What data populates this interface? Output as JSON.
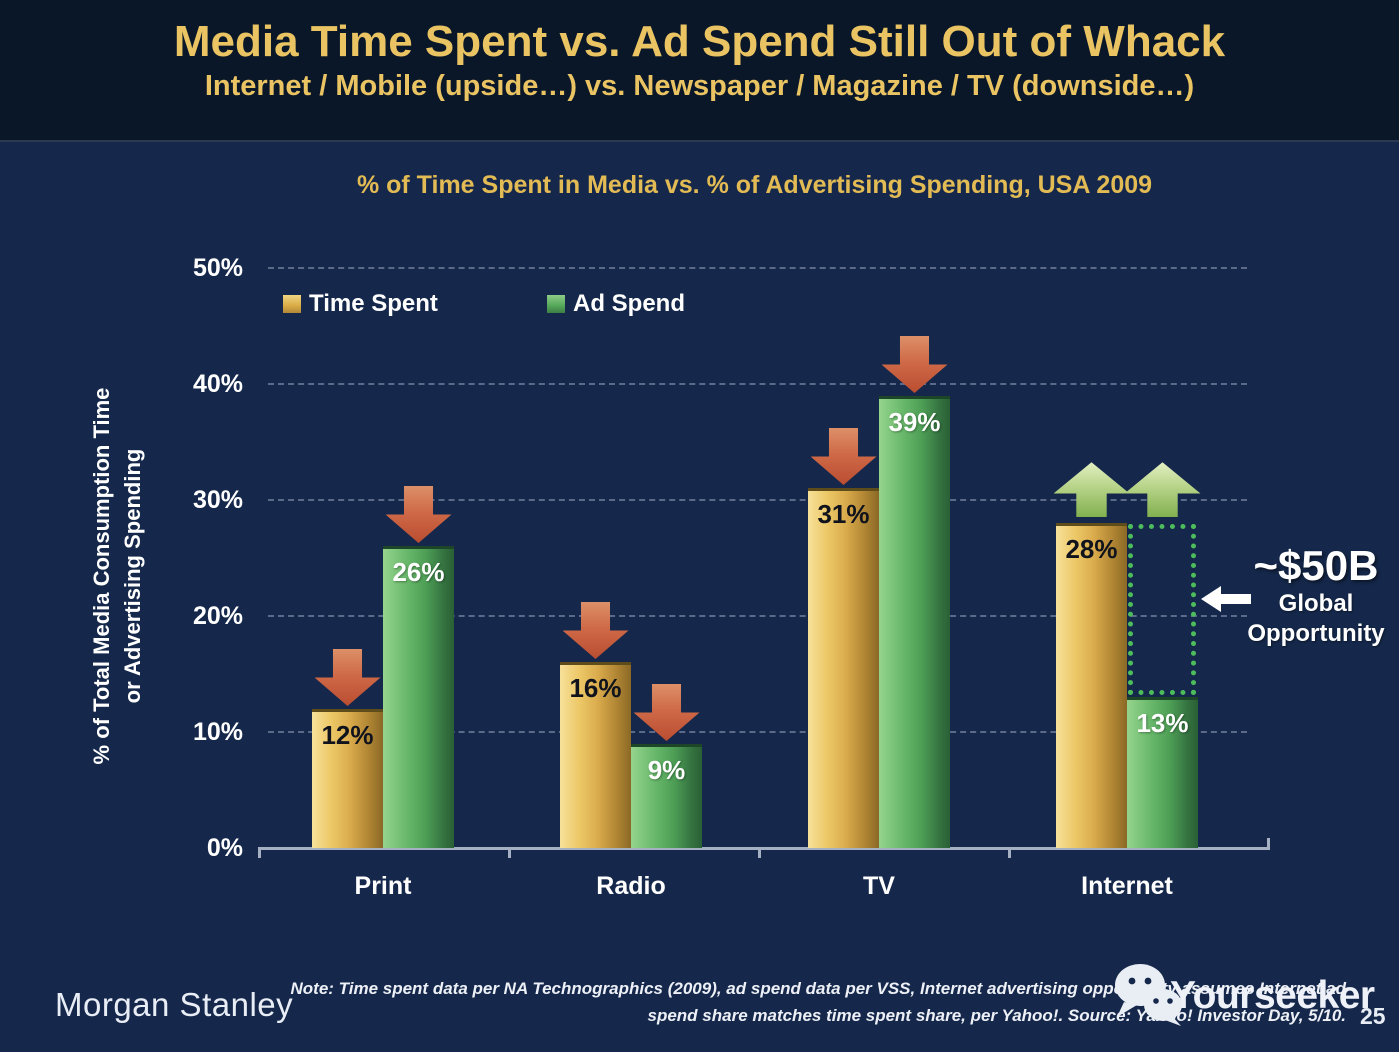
{
  "header": {
    "title": "Media Time Spent vs. Ad Spend Still Out of Whack",
    "subtitle": "Internet / Mobile (upside…) vs. Newspaper / Magazine / TV (downside…)"
  },
  "chart_data": {
    "type": "bar",
    "title": "% of Time Spent in Media vs. % of Advertising Spending, USA 2009",
    "ylabel": "% of Total Media Consumption Time or Advertising Spending",
    "ylabel_lines": [
      "% of Total Media Consumption Time",
      "or Advertising Spending"
    ],
    "categories": [
      "Print",
      "Radio",
      "TV",
      "Internet"
    ],
    "series": [
      {
        "name": "Time Spent",
        "color": "#ddb24c",
        "values": [
          12,
          16,
          31,
          28
        ],
        "labels": [
          "12%",
          "16%",
          "31%",
          "28%"
        ]
      },
      {
        "name": "Ad Spend",
        "color": "#55a75a",
        "values": [
          26,
          9,
          39,
          13
        ],
        "labels": [
          "26%",
          "9%",
          "39%",
          "13%"
        ]
      }
    ],
    "unit": "%",
    "ylim": [
      0,
      50
    ],
    "yticks": [
      "0%",
      "10%",
      "20%",
      "30%",
      "40%",
      "50%"
    ],
    "grid": "horizontal-dashed",
    "legend_position": "top-left",
    "trend_arrows": {
      "Print": [
        "down",
        "down"
      ],
      "Radio": [
        "down",
        "down"
      ],
      "TV": [
        "down",
        "down"
      ],
      "Internet": [
        "up",
        "up"
      ]
    },
    "opportunity_gap": {
      "category": "Internet",
      "from": 13,
      "to": 28,
      "style": "green-dotted-box"
    }
  },
  "callout": {
    "amount": "~$50B",
    "label_line1": "Global",
    "label_line2": "Opportunity"
  },
  "colors": {
    "background": "#15284b",
    "header_background": "#0a1729",
    "title_gold": "#eac463",
    "time_spent_gold": "#ddb24c",
    "ad_spend_green": "#55a75a",
    "down_arrow_red": "#cf6a48",
    "up_arrow_green": "#b7d489",
    "opportunity_dotted_green": "#4dbd5c"
  },
  "footer": {
    "brand": "Morgan Stanley",
    "note_line1": "Note: Time spent data per NA Technographics (2009), ad spend data per VSS, Internet advertising opportunity assumes Internet ad",
    "note_line2": "spend share matches time spent share, per Yahoo!. Source: Yahoo! Investor Day, 5/10.",
    "watermark": "Yourseeker",
    "page_number": "25"
  }
}
